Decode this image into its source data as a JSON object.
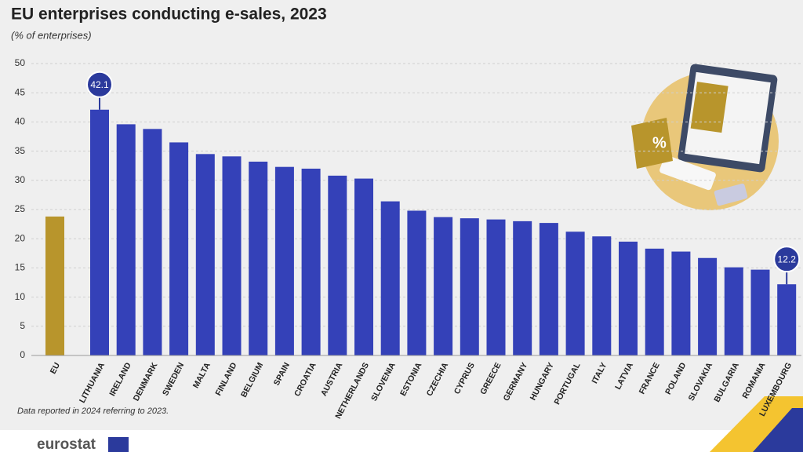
{
  "chart_data": {
    "type": "bar",
    "title": "EU enterprises conducting e-sales, 2023",
    "subtitle": "(% of enterprises)",
    "note": "Data reported in 2024 referring to 2023.",
    "source": "eurostat",
    "categories": [
      "EU",
      "LITHUANIA",
      "IRELAND",
      "DENMARK",
      "SWEDEN",
      "MALTA",
      "FINLAND",
      "BELGIUM",
      "SPAIN",
      "CROATIA",
      "AUSTRIA",
      "NETHERLANDS",
      "SLOVENIA",
      "ESTONIA",
      "CZECHIA",
      "CYPRUS",
      "GREECE",
      "GERMANY",
      "HUNGARY",
      "PORTUGAL",
      "ITALY",
      "LATVIA",
      "FRANCE",
      "POLAND",
      "SLOVAKIA",
      "BULGARIA",
      "ROMANIA",
      "LUXEMBOURG"
    ],
    "values": [
      23.8,
      42.1,
      39.6,
      38.8,
      36.5,
      34.5,
      34.1,
      33.2,
      32.3,
      32.0,
      30.8,
      30.3,
      26.4,
      24.8,
      23.7,
      23.5,
      23.3,
      23.0,
      22.7,
      21.2,
      20.4,
      19.5,
      18.3,
      17.8,
      16.7,
      15.1,
      14.7,
      12.2
    ],
    "colors": [
      "#b8952c",
      "#3441b8",
      "#3441b8",
      "#3441b8",
      "#3441b8",
      "#3441b8",
      "#3441b8",
      "#3441b8",
      "#3441b8",
      "#3441b8",
      "#3441b8",
      "#3441b8",
      "#3441b8",
      "#3441b8",
      "#3441b8",
      "#3441b8",
      "#3441b8",
      "#3441b8",
      "#3441b8",
      "#3441b8",
      "#3441b8",
      "#3441b8",
      "#3441b8",
      "#3441b8",
      "#3441b8",
      "#3441b8",
      "#3441b8",
      "#3441b8"
    ],
    "ylim": [
      0,
      50
    ],
    "yticks": [
      0,
      5,
      10,
      15,
      20,
      25,
      30,
      35,
      40,
      45,
      50
    ],
    "grid": true
  }
}
